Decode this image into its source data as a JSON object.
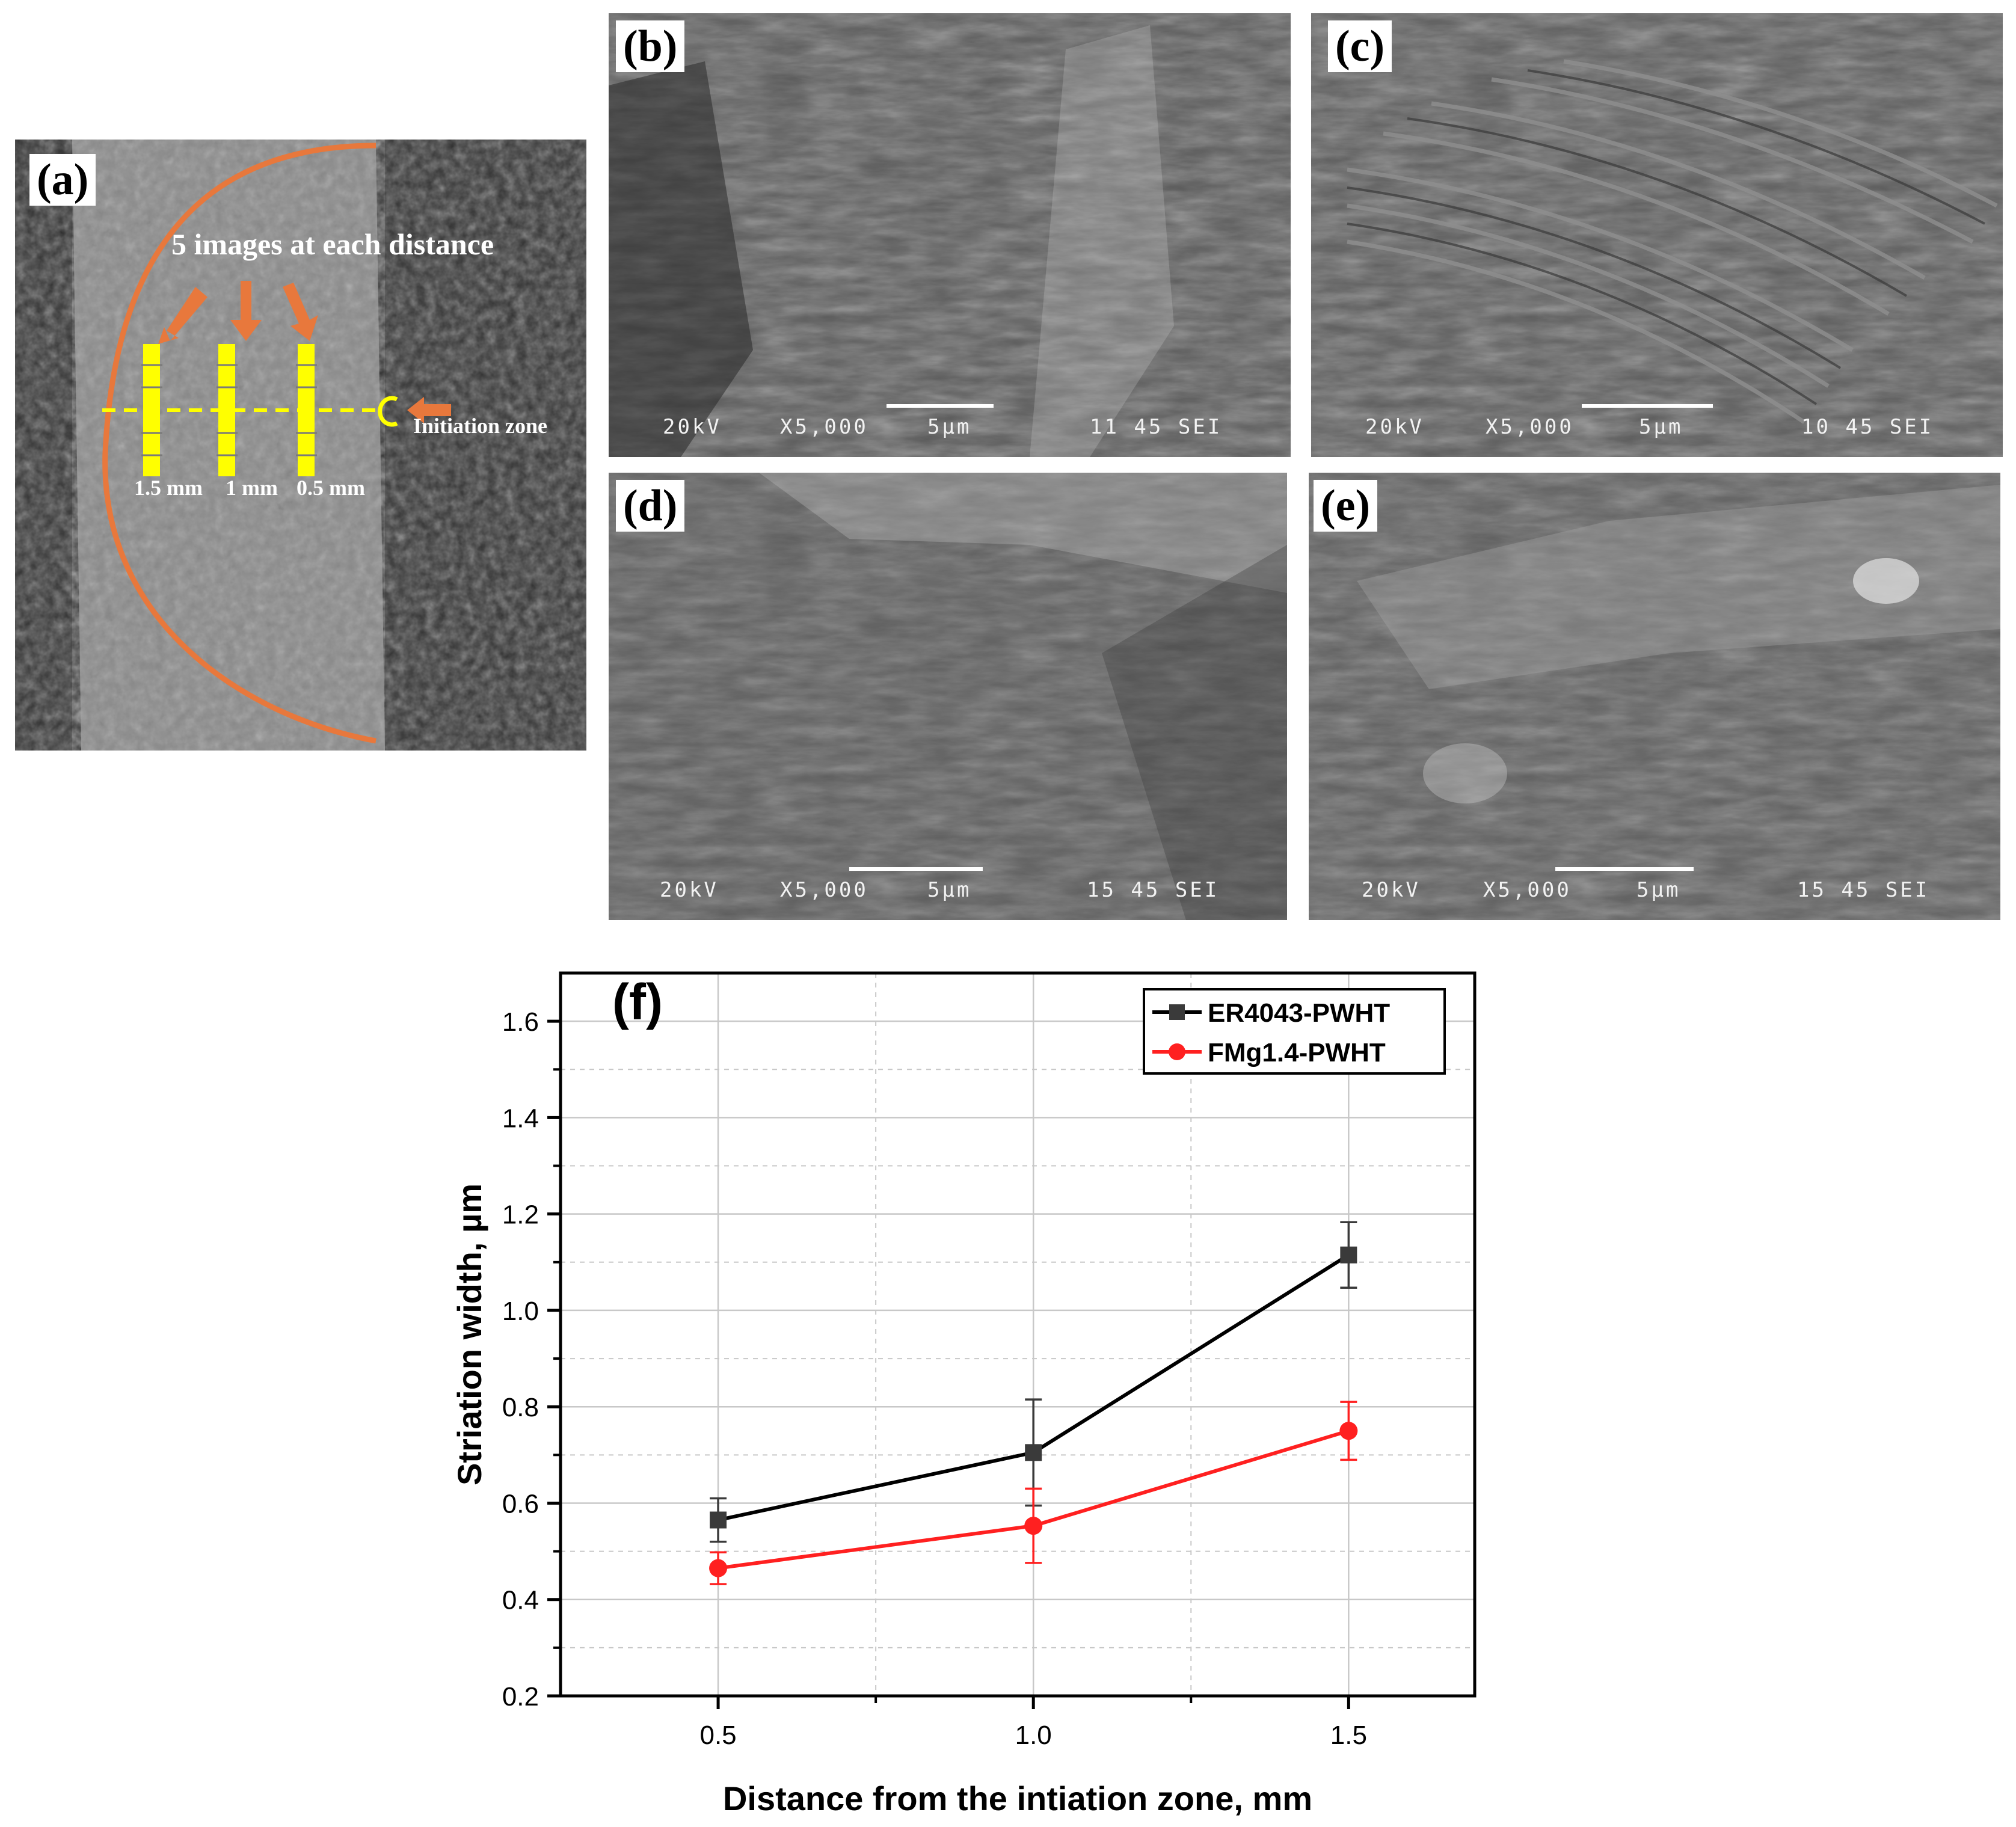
{
  "panels": {
    "a": {
      "label": "(a)",
      "caption": "5 images at each distance",
      "initiation": "Initiation zone",
      "distances": [
        "1.5 mm",
        "1 mm",
        "0.5 mm"
      ]
    },
    "b": {
      "label": "(b)",
      "kv": "20kV",
      "mag": "X5,000",
      "scale": "5µm",
      "info": "11 45 SEI"
    },
    "c": {
      "label": "(c)",
      "kv": "20kV",
      "mag": "X5,000",
      "scale": "5µm",
      "info": "10 45 SEI"
    },
    "d": {
      "label": "(d)",
      "kv": "20kV",
      "mag": "X5,000",
      "scale": "5µm",
      "info": "15 45 SEI"
    },
    "e": {
      "label": "(e)",
      "kv": "20kV",
      "mag": "X5,000",
      "scale": "5µm",
      "info": "15 45 SEI"
    }
  },
  "colors": {
    "annotation_orange": "#e8783c",
    "annotation_yellow": "#ffff00",
    "series1": "#000000",
    "series1_marker": "#3a3a3a",
    "series2": "#ff2020",
    "grid": "#c8c8c8"
  },
  "chart_data": {
    "type": "line",
    "panel_label": "(f)",
    "xlabel": "Distance from the intiation zone, mm",
    "ylabel": "Striation width, µm",
    "xlim": [
      0.25,
      1.7
    ],
    "ylim": [
      0.2,
      1.7
    ],
    "xticks": [
      0.5,
      1.0,
      1.5
    ],
    "xtick_labels": [
      "0.5",
      "1.0",
      "1.5"
    ],
    "yticks": [
      0.2,
      0.4,
      0.6,
      0.8,
      1.0,
      1.2,
      1.4,
      1.6
    ],
    "ytick_labels": [
      "0.2",
      "0.4",
      "0.6",
      "0.8",
      "1.0",
      "1.2",
      "1.4",
      "1.6"
    ],
    "grid": true,
    "legend_position": "top-right",
    "series": [
      {
        "name": "ER4043-PWHT",
        "marker": "square",
        "x": [
          0.5,
          1.0,
          1.5
        ],
        "y": [
          0.565,
          0.705,
          1.115
        ],
        "err": [
          0.045,
          0.11,
          0.068
        ]
      },
      {
        "name": "FMg1.4-PWHT",
        "marker": "circle",
        "x": [
          0.5,
          1.0,
          1.5
        ],
        "y": [
          0.465,
          0.553,
          0.75
        ],
        "err": [
          0.033,
          0.077,
          0.06
        ]
      }
    ]
  }
}
